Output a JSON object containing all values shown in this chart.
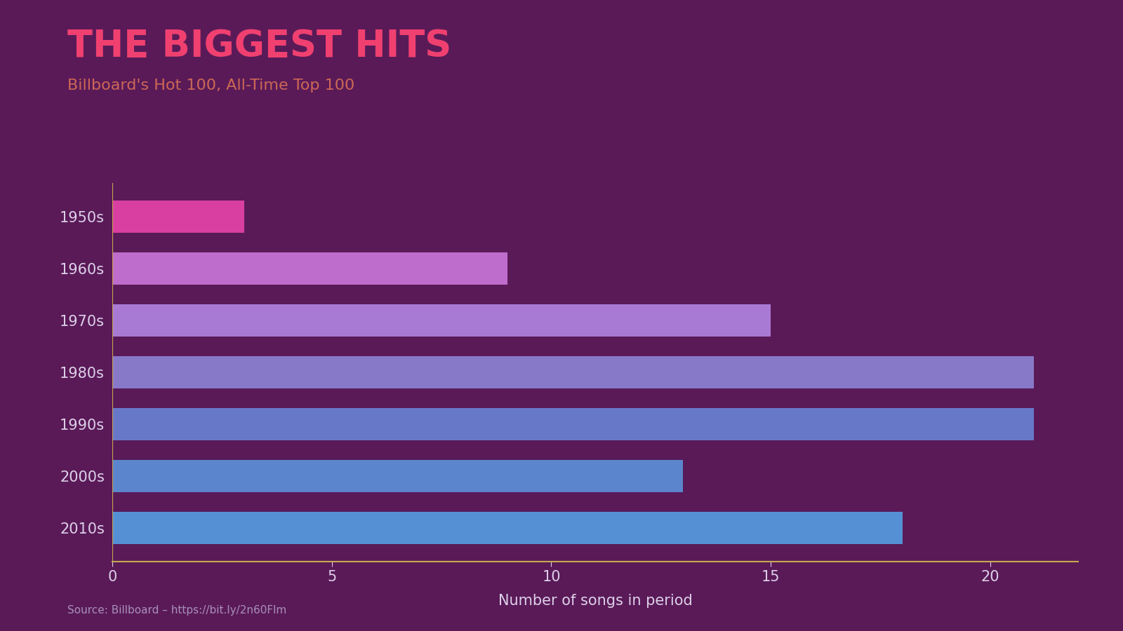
{
  "title": "THE BIGGEST HITS",
  "subtitle": "Billboard's Hot 100, All-Time Top 100",
  "source_text": "Source: Billboard – https://bit.ly/2n60Flm",
  "categories": [
    "1950s",
    "1960s",
    "1970s",
    "1980s",
    "1990s",
    "2000s",
    "2010s"
  ],
  "values": [
    3,
    9,
    15,
    21,
    21,
    13,
    18
  ],
  "bar_colors": [
    "#d93fa0",
    "#bf6dcc",
    "#a87ad4",
    "#8878c8",
    "#6878c8",
    "#5b85cc",
    "#5590d4"
  ],
  "background_color": "#5a1a58",
  "title_color": "#f04070",
  "subtitle_color": "#cc6855",
  "source_color": "#a890b8",
  "tick_label_color": "#ddd0e8",
  "axis_label_color": "#ddd0e8",
  "xlabel": "Number of songs in period",
  "axis_line_color": "#c8a850",
  "xlim": [
    0,
    22
  ],
  "title_fontsize": 38,
  "subtitle_fontsize": 16,
  "tick_fontsize": 15,
  "xlabel_fontsize": 15,
  "source_fontsize": 11,
  "bar_height": 0.62
}
